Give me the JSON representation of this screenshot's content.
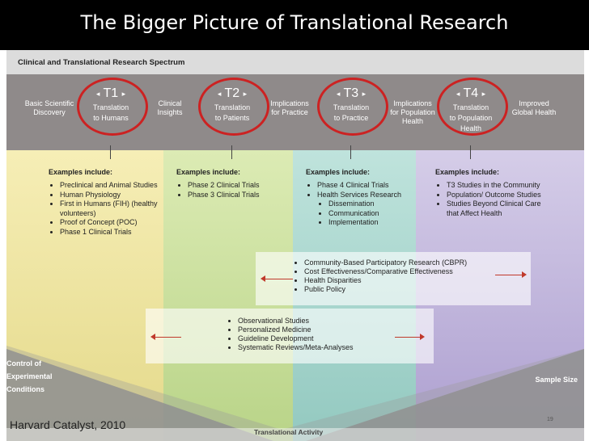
{
  "title": "The Bigger Picture of Translational Research",
  "spectrum_title": "Clinical and Translational Research Spectrum",
  "steps": {
    "basic_discovery": "Basic Scientific\nDiscovery",
    "clinical_insights": "Clinical\nInsights",
    "implications_practice": "Implications\nfor Practice",
    "implications_population": "Implications\nfor Population\nHealth",
    "improved_health": "Improved\nGlobal Health"
  },
  "phases": [
    {
      "label": "T1",
      "desc": "Translation\nto Humans"
    },
    {
      "label": "T2",
      "desc": "Translation\nto Patients"
    },
    {
      "label": "T3",
      "desc": "Translation\nto Practice"
    },
    {
      "label": "T4",
      "desc": "Translation\nto Population\nHealth"
    }
  ],
  "examples_heading": "Examples include:",
  "examples": {
    "t1": [
      "Preclinical and Animal Studies",
      "Human Physiology",
      "First in Humans (FIH) (healthy volunteers)",
      "Proof of Concept (POC)",
      "Phase 1 Clinical Trials"
    ],
    "t2": [
      "Phase 2 Clinical Trials",
      "Phase 3 Clinical Trials"
    ],
    "t3": [
      "Phase 4 Clinical Trials",
      "Health Services Research"
    ],
    "t3_sub": [
      "Dissemination",
      "Communication",
      "Implementation"
    ],
    "t4": [
      "T3 Studies in the Community",
      "Population/ Outcome Studies",
      "Studies Beyond Clinical Care that Affect Health"
    ]
  },
  "upper_bar": [
    "Community-Based Participatory Research (CBPR)",
    "Cost Effectiveness/Comparative Effectiveness",
    "Health Disparities",
    "Public Policy"
  ],
  "lower_bar": [
    "Observational Studies",
    "Personalized Medicine",
    "Guideline Development",
    "Systematic Reviews/Meta-Analyses"
  ],
  "axes": {
    "control": "Control of\nExperimental\nConditions",
    "sample_size": "Sample Size",
    "translational_activity": "Translational Activity"
  },
  "slide_number": "19",
  "credit": "Harvard Catalyst, 2010",
  "colors": {
    "ring": "#cc2222",
    "arrow": "#c0392b",
    "band_t1": "#f0e6a0",
    "band_t2": "#c9df9c",
    "band_t3": "#a8d6cf",
    "band_t4": "#c3b7dc",
    "header_band": "#8f8a8a"
  }
}
